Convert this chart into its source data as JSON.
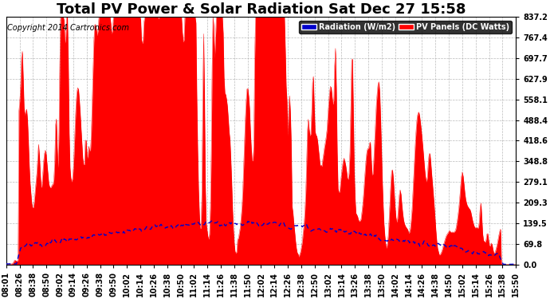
{
  "title": "Total PV Power & Solar Radiation Sat Dec 27 15:58",
  "copyright": "Copyright 2014 Cartronics.com",
  "legend_radiation": "Radiation (W/m2)",
  "legend_pv": "PV Panels (DC Watts)",
  "radiation_color": "#0000cc",
  "pv_color": "#ff0000",
  "background_color": "#ffffff",
  "grid_color": "#aaaaaa",
  "yticks": [
    0.0,
    69.8,
    139.5,
    209.3,
    279.1,
    348.8,
    418.6,
    488.4,
    558.1,
    627.9,
    697.7,
    767.4,
    837.2
  ],
  "ymax": 837.2,
  "xtick_labels": [
    "08:01",
    "08:26",
    "08:38",
    "08:50",
    "09:02",
    "09:14",
    "09:26",
    "09:38",
    "09:50",
    "10:02",
    "10:14",
    "10:26",
    "10:38",
    "10:50",
    "11:02",
    "11:14",
    "11:26",
    "11:38",
    "11:50",
    "12:02",
    "12:14",
    "12:26",
    "12:38",
    "12:50",
    "13:02",
    "13:14",
    "13:26",
    "13:38",
    "13:50",
    "14:02",
    "14:14",
    "14:26",
    "14:38",
    "14:50",
    "15:02",
    "15:14",
    "15:26",
    "15:38",
    "15:50"
  ],
  "title_fontsize": 13,
  "copyright_fontsize": 7,
  "axis_fontsize": 7,
  "legend_fontsize": 7
}
